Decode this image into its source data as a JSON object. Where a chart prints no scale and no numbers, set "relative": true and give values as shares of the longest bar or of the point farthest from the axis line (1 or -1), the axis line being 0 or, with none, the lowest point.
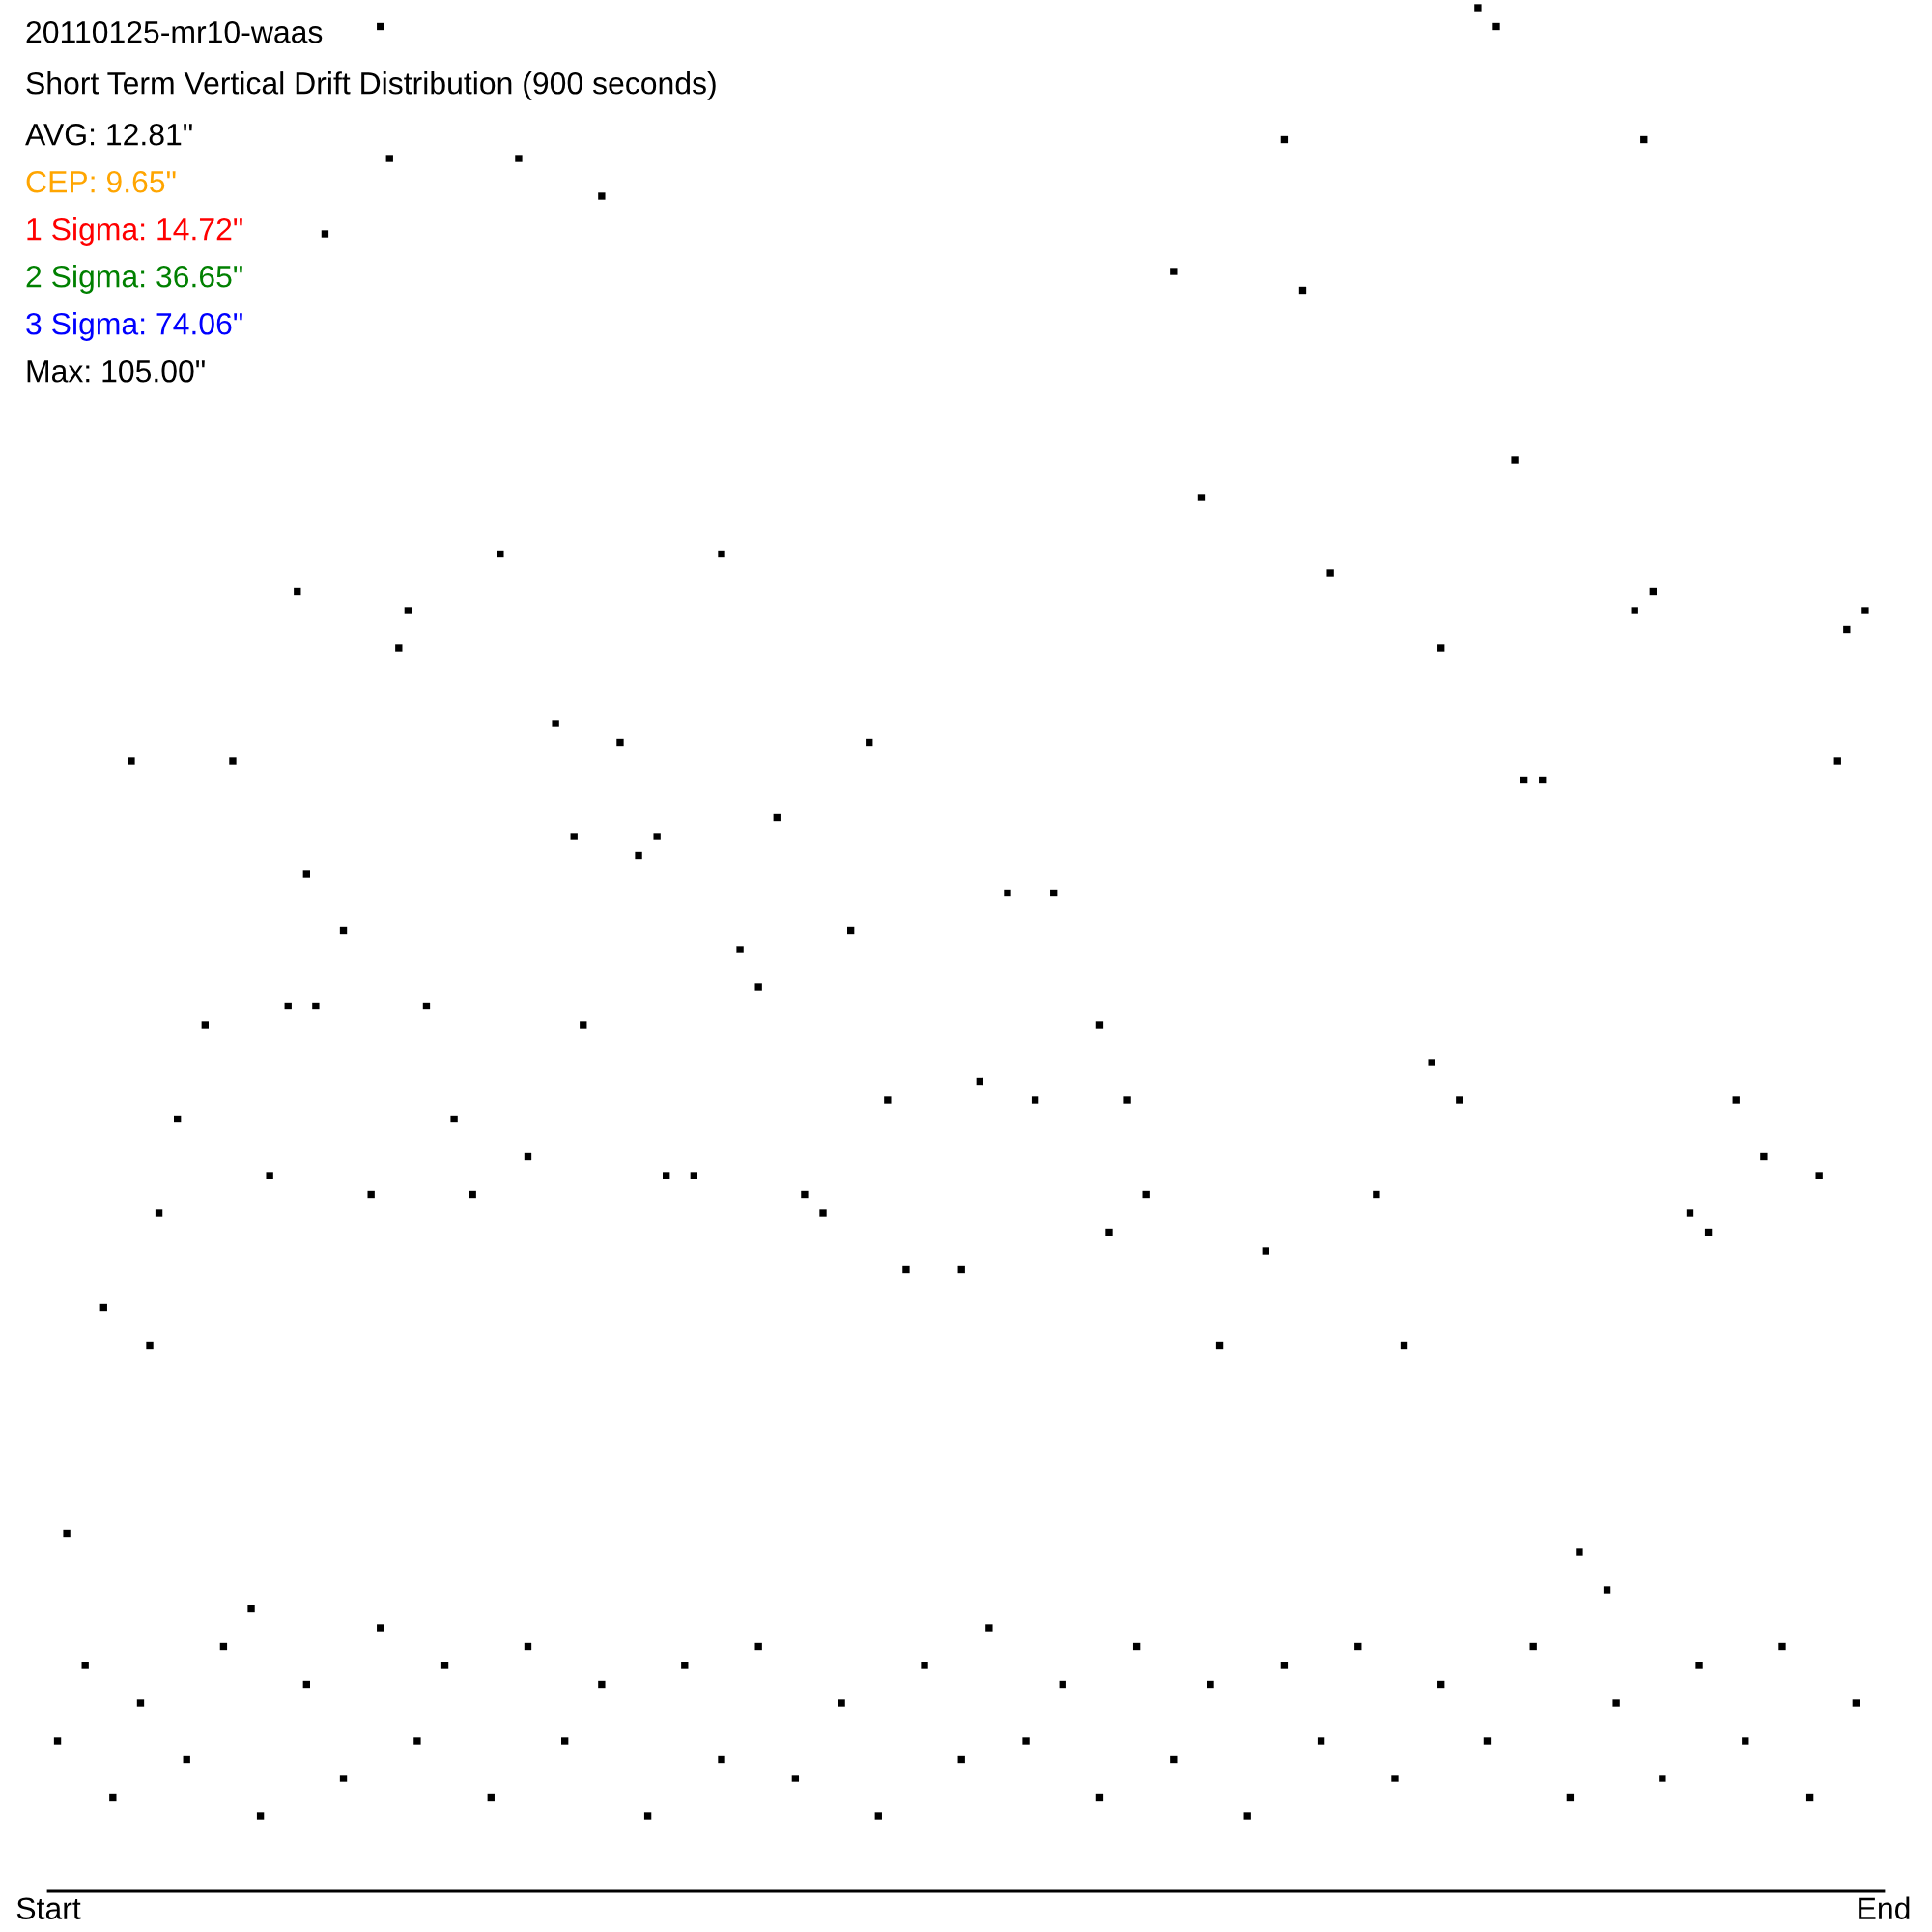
{
  "chart_data": {
    "type": "scatter",
    "title": "20110125-mr10-waas",
    "subtitle": "Short Term Vertical Drift Distribution (900 seconds)",
    "annotations": [
      "AVG: 12.81\"",
      "CEP: 9.65\"",
      "1 Sigma: 14.72\"",
      "2 Sigma: 36.65\"",
      "3 Sigma: 74.06\"",
      "Max: 105.00\""
    ],
    "relative": true,
    "marker": "square",
    "tick_labels": "x",
    "categories": [
      "Start",
      null,
      null,
      null,
      null,
      null,
      null,
      null,
      null,
      null,
      null,
      null,
      null,
      null,
      null,
      null,
      null,
      null,
      null,
      null,
      null,
      null,
      null,
      null,
      null,
      null,
      null,
      null,
      null,
      null,
      null,
      null,
      null,
      null,
      null,
      null,
      null,
      null,
      null,
      null,
      null,
      null,
      null,
      null,
      null,
      null,
      null,
      null,
      null,
      null,
      null,
      null,
      null,
      null,
      null,
      null,
      null,
      null,
      null,
      null,
      null,
      null,
      null,
      null,
      null,
      null,
      null,
      null,
      null,
      null,
      null,
      null,
      null,
      null,
      null,
      null,
      null,
      null,
      null,
      null,
      null,
      null,
      null,
      null,
      null,
      null,
      null,
      null,
      null,
      null,
      null,
      null,
      null,
      null,
      null,
      null,
      null,
      null,
      null,
      null,
      null,
      null,
      null,
      null,
      null,
      null,
      null,
      null,
      null,
      null,
      null,
      null,
      null,
      null,
      null,
      null,
      null,
      null,
      null,
      null,
      null,
      null,
      null,
      null,
      null,
      null,
      null,
      null,
      null,
      null,
      null,
      null,
      null,
      null,
      null,
      null,
      null,
      null,
      null,
      null,
      null,
      null,
      null,
      null,
      null,
      null,
      null,
      null,
      null,
      null,
      null,
      null,
      null,
      null,
      null,
      null,
      null,
      null,
      null,
      null,
      null,
      null,
      null,
      null,
      null,
      null,
      null,
      null,
      null,
      null,
      null,
      null,
      null,
      null,
      null,
      null,
      null,
      null,
      null,
      null,
      null,
      null,
      null,
      null,
      null,
      null,
      null,
      null,
      null,
      null,
      null,
      null,
      null,
      null,
      null,
      null,
      null,
      null,
      null,
      "End"
    ],
    "series": [
      {
        "color": "#000000",
        "values": [
          null,
          null,
          0.19,
          null,
          null,
          null,
          0.31,
          null,
          null,
          0.6,
          null,
          0.29,
          0.36,
          null,
          0.41,
          null,
          null,
          0.46,
          null,
          null,
          0.6,
          null,
          0.15,
          null,
          0.38,
          null,
          0.47,
          0.69,
          0.54,
          0.47,
          0.88,
          null,
          0.51,
          null,
          null,
          0.37,
          0.99,
          0.92,
          0.66,
          0.68,
          null,
          0.47,
          null,
          null,
          0.41,
          null,
          0.37,
          null,
          null,
          0.71,
          null,
          0.92,
          0.39,
          null,
          null,
          0.62,
          null,
          0.56,
          0.46,
          null,
          0.9,
          null,
          0.61,
          null,
          0.55,
          null,
          0.56,
          0.38,
          null,
          null,
          0.38,
          null,
          null,
          0.71,
          null,
          0.5,
          null,
          0.48,
          null,
          0.57,
          null,
          null,
          0.37,
          null,
          0.36,
          null,
          null,
          0.51,
          null,
          0.61,
          null,
          0.42,
          null,
          0.33,
          null,
          null,
          null,
          null,
          null,
          0.33,
          null,
          0.43,
          null,
          null,
          0.53,
          null,
          null,
          0.42,
          null,
          0.53,
          null,
          null,
          null,
          null,
          0.46,
          0.35,
          null,
          0.42,
          null,
          0.37,
          null,
          null,
          0.86,
          null,
          null,
          0.74,
          null,
          0.29,
          null,
          null,
          null,
          null,
          0.34,
          null,
          0.93,
          null,
          0.85,
          null,
          null,
          0.7,
          null,
          null,
          null,
          null,
          0.37,
          null,
          null,
          0.29,
          null,
          null,
          0.44,
          0.66,
          null,
          0.42,
          null,
          1.0,
          null,
          0.99,
          null,
          0.76,
          0.59,
          null,
          0.59,
          null,
          null,
          null,
          0.18,
          null,
          null,
          0.16,
          null,
          null,
          0.68,
          0.93,
          0.69,
          null,
          null,
          null,
          0.36,
          null,
          0.35,
          null,
          null,
          0.42,
          null,
          null,
          0.39,
          null,
          null,
          null,
          null,
          null,
          0.38,
          null,
          0.6,
          0.67,
          null,
          0.68,
          null,
          null
        ]
      },
      {
        "color": "#000000",
        "values": [
          null,
          0.08,
          null,
          null,
          0.12,
          null,
          null,
          0.05,
          null,
          null,
          0.1,
          null,
          null,
          null,
          null,
          0.07,
          null,
          null,
          null,
          0.13,
          null,
          null,
          null,
          0.04,
          null,
          null,
          null,
          null,
          0.11,
          null,
          null,
          null,
          0.06,
          null,
          null,
          null,
          0.14,
          null,
          null,
          null,
          0.08,
          null,
          null,
          0.12,
          null,
          null,
          null,
          null,
          0.05,
          null,
          null,
          null,
          0.13,
          null,
          null,
          null,
          0.08,
          null,
          null,
          null,
          0.11,
          null,
          null,
          null,
          null,
          0.04,
          null,
          null,
          null,
          0.12,
          null,
          null,
          null,
          0.07,
          null,
          null,
          null,
          0.13,
          null,
          null,
          null,
          0.06,
          null,
          null,
          null,
          null,
          0.1,
          null,
          null,
          null,
          0.04,
          null,
          null,
          null,
          null,
          0.12,
          null,
          null,
          null,
          0.07,
          null,
          null,
          0.14,
          null,
          null,
          null,
          0.08,
          null,
          null,
          null,
          0.11,
          null,
          null,
          null,
          0.05,
          null,
          null,
          null,
          0.13,
          null,
          null,
          null,
          0.07,
          null,
          null,
          null,
          0.11,
          null,
          null,
          null,
          0.04,
          null,
          null,
          null,
          0.12,
          null,
          null,
          null,
          0.08,
          null,
          null,
          null,
          0.13,
          null,
          null,
          null,
          0.06,
          null,
          null,
          null,
          null,
          0.11,
          null,
          null,
          null,
          null,
          0.08,
          null,
          null,
          null,
          null,
          0.13,
          null,
          null,
          null,
          0.05,
          null,
          null,
          null,
          null,
          0.1,
          null,
          null,
          null,
          null,
          0.06,
          null,
          null,
          null,
          0.12,
          null,
          null,
          null,
          null,
          0.08,
          null,
          null,
          null,
          0.13,
          null,
          null,
          0.05,
          null,
          null,
          null,
          null,
          0.1,
          null,
          null,
          null
        ]
      }
    ]
  }
}
